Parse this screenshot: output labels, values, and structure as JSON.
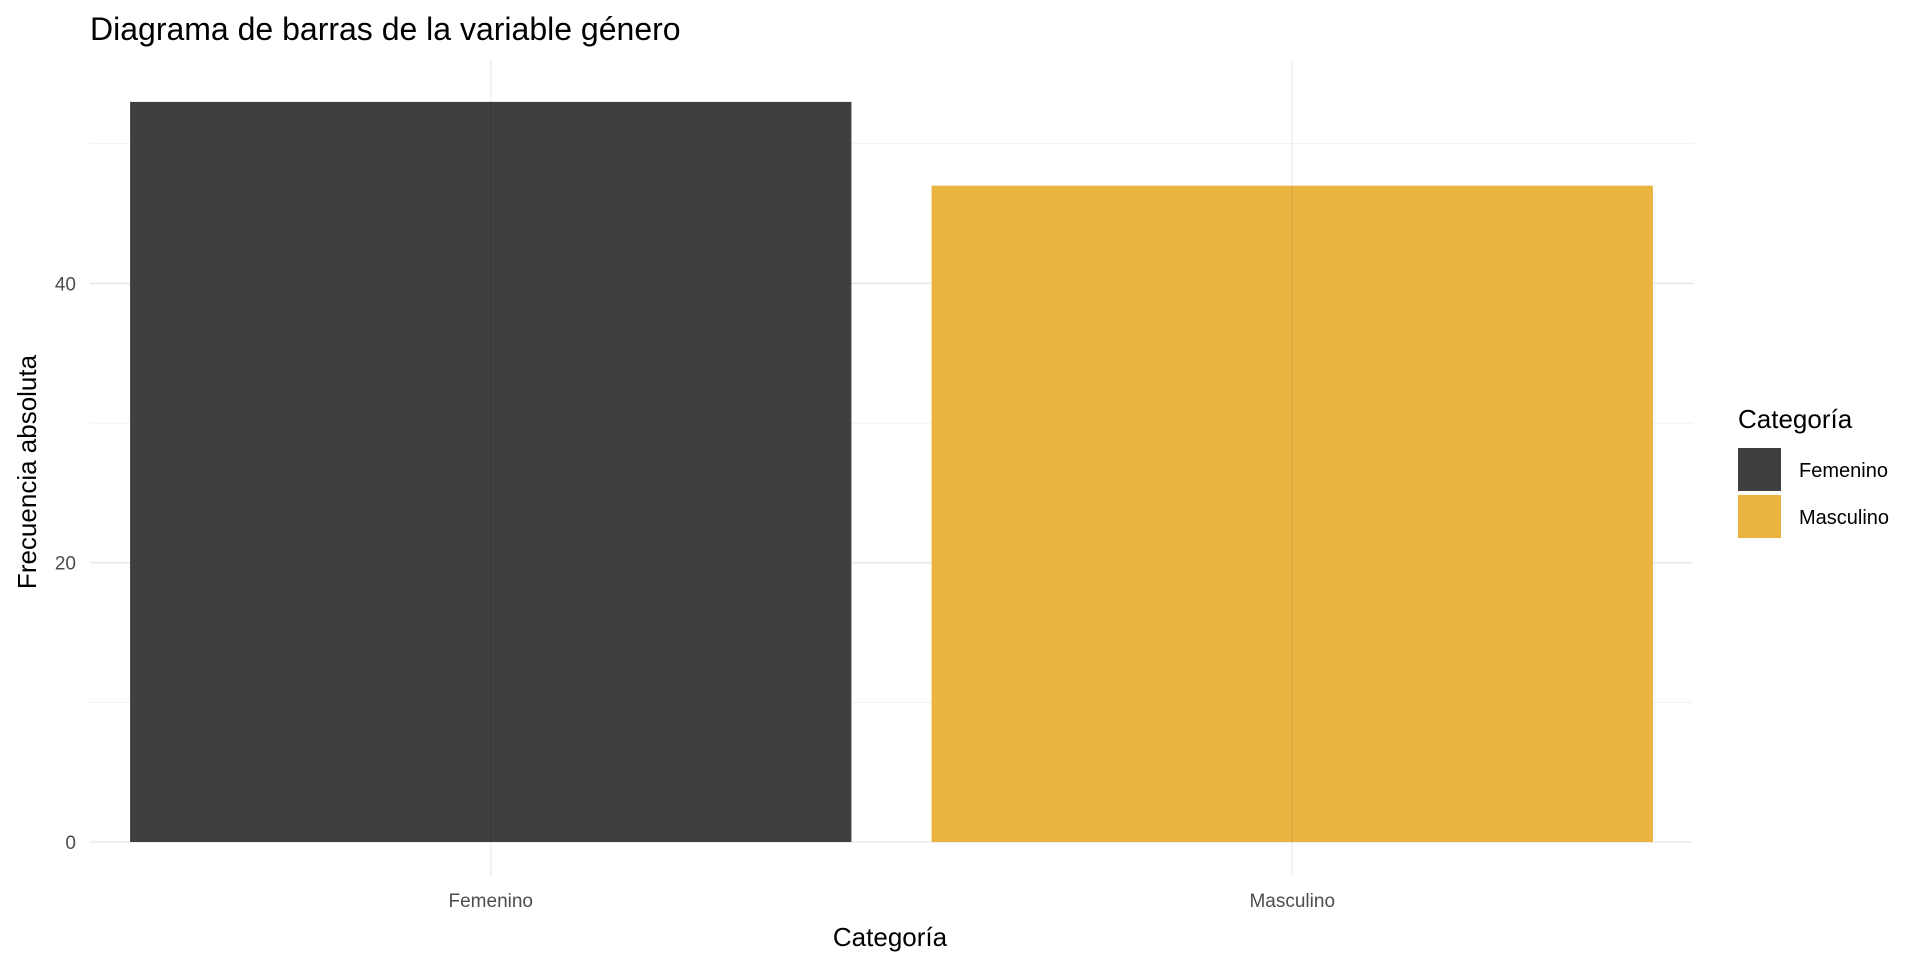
{
  "chart_data": {
    "type": "bar",
    "title": "Diagrama de barras de la variable género",
    "xlabel": "Categoría",
    "ylabel": "Frecuencia absoluta",
    "categories": [
      "Femenino",
      "Masculino"
    ],
    "values": [
      53,
      47
    ],
    "colors": [
      "#3f3f3f",
      "#ebb440"
    ],
    "ylim": [
      0,
      56
    ],
    "yticks": [
      0,
      20,
      40
    ],
    "grid": true,
    "legend": {
      "title": "Categoría",
      "placement": "right",
      "entries": [
        {
          "label": "Femenino",
          "color": "#3f3f3f"
        },
        {
          "label": "Masculino",
          "color": "#ebb440"
        }
      ]
    }
  }
}
